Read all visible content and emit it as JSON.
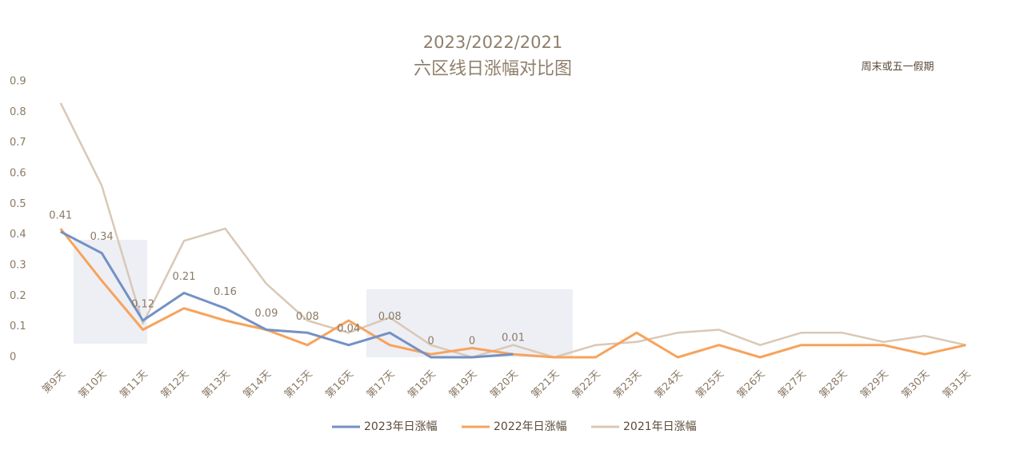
{
  "chart_data": {
    "type": "line",
    "title": "2023/2022/2021",
    "subtitle": "六区线日涨幅对比图",
    "annotation": "周末或五一假期",
    "categories": [
      "第9天",
      "第10天",
      "第11天",
      "第12天",
      "第13天",
      "第14天",
      "第15天",
      "第16天",
      "第17天",
      "第18天",
      "第19天",
      "第20天",
      "第21天",
      "第22天",
      "第23天",
      "第24天",
      "第25天",
      "第26天",
      "第27天",
      "第28天",
      "第29天",
      "第30天",
      "第31天"
    ],
    "series": [
      {
        "name": "2023年日涨幅",
        "color": "#7391c4",
        "data_labels": true,
        "values": [
          0.41,
          0.34,
          0.12,
          0.21,
          0.16,
          0.09,
          0.08,
          0.04,
          0.08,
          0,
          0,
          0.01,
          null,
          null,
          null,
          null,
          null,
          null,
          null,
          null,
          null,
          null,
          null
        ]
      },
      {
        "name": "2022年日涨幅",
        "color": "#f7a35c",
        "values": [
          0.42,
          0.25,
          0.09,
          0.16,
          0.12,
          0.09,
          0.04,
          0.12,
          0.04,
          0.01,
          0.03,
          0.01,
          0,
          0,
          0.08,
          0,
          0.04,
          0,
          0.04,
          0.04,
          0.04,
          0.01,
          0.04
        ]
      },
      {
        "name": "2021年日涨幅",
        "color": "#d9c8b6",
        "values": [
          0.83,
          0.56,
          0.11,
          0.38,
          0.42,
          0.24,
          0.12,
          0.08,
          0.13,
          0.04,
          0,
          0.04,
          0,
          0.04,
          0.05,
          0.08,
          0.09,
          0.04,
          0.08,
          0.08,
          0.05,
          0.07,
          0.04
        ]
      }
    ],
    "ylim": [
      0,
      0.9
    ],
    "yticks": [
      0,
      0.1,
      0.2,
      0.3,
      0.4,
      0.5,
      0.6,
      0.7,
      0.8,
      0.9
    ],
    "grid": false,
    "legend": "bottom"
  }
}
